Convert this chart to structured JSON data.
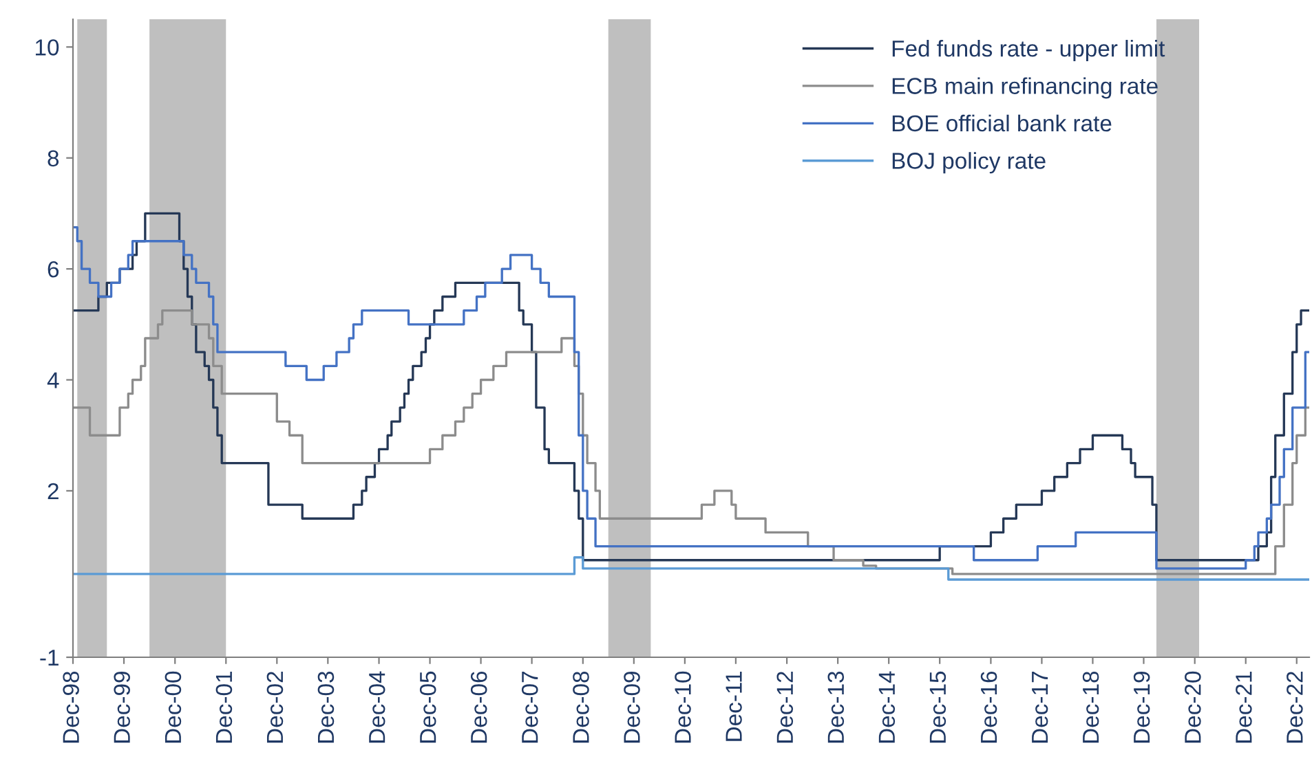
{
  "chart_data": {
    "type": "step",
    "legend": "top right",
    "grid": false,
    "xlim": [
      "1998-12",
      "2023-03"
    ],
    "ylim": [
      -1,
      10.5
    ],
    "yticks": [
      -1,
      2,
      4,
      6,
      8,
      10
    ],
    "xticks": [
      {
        "value": "1998-12",
        "label": "Dec-98"
      },
      {
        "value": "1999-12",
        "label": "Dec-99"
      },
      {
        "value": "2000-12",
        "label": "Dec-00"
      },
      {
        "value": "2001-12",
        "label": "Dec-01"
      },
      {
        "value": "2002-12",
        "label": "Dec-02"
      },
      {
        "value": "2003-12",
        "label": "Dec-03"
      },
      {
        "value": "2004-12",
        "label": "Dec-04"
      },
      {
        "value": "2005-12",
        "label": "Dec-05"
      },
      {
        "value": "2006-12",
        "label": "Dec-06"
      },
      {
        "value": "2007-12",
        "label": "Dec-07"
      },
      {
        "value": "2008-12",
        "label": "Dec-08"
      },
      {
        "value": "2009-12",
        "label": "Dec-09"
      },
      {
        "value": "2010-12",
        "label": "Dec-10"
      },
      {
        "value": "2011-12",
        "label": "Dec-11"
      },
      {
        "value": "2012-12",
        "label": "Dec-12"
      },
      {
        "value": "2013-12",
        "label": "Dec-13"
      },
      {
        "value": "2014-12",
        "label": "Dec-14"
      },
      {
        "value": "2015-12",
        "label": "Dec-15"
      },
      {
        "value": "2016-12",
        "label": "Dec-16"
      },
      {
        "value": "2017-12",
        "label": "Dec-17"
      },
      {
        "value": "2018-12",
        "label": "Dec-18"
      },
      {
        "value": "2019-12",
        "label": "Dec-19"
      },
      {
        "value": "2020-12",
        "label": "Dec-20"
      },
      {
        "value": "2021-12",
        "label": "Dec-21"
      },
      {
        "value": "2022-12",
        "label": "Dec-22"
      }
    ],
    "bands": [
      {
        "axis": "x",
        "from": "1999-01",
        "to": "1999-08",
        "color": "#bfbfbf"
      },
      {
        "axis": "x",
        "from": "2000-06",
        "to": "2001-12",
        "color": "#bfbfbf"
      },
      {
        "axis": "x",
        "from": "2009-06",
        "to": "2010-04",
        "color": "#bfbfbf"
      },
      {
        "axis": "x",
        "from": "2020-03",
        "to": "2021-01",
        "color": "#bfbfbf"
      }
    ],
    "series": [
      {
        "name": "Fed funds rate - upper limit",
        "color": "#253856",
        "x": [
          "1998-12",
          "1999-06",
          "1999-08",
          "1999-11",
          "2000-02",
          "2000-03",
          "2000-05",
          "2001-01",
          "2001-02",
          "2001-03",
          "2001-04",
          "2001-05",
          "2001-07",
          "2001-08",
          "2001-09",
          "2001-10",
          "2001-11",
          "2002-10",
          "2003-06",
          "2004-06",
          "2004-08",
          "2004-09",
          "2004-11",
          "2004-12",
          "2005-02",
          "2005-03",
          "2005-05",
          "2005-06",
          "2005-07",
          "2005-08",
          "2005-10",
          "2005-11",
          "2005-12",
          "2006-01",
          "2006-03",
          "2006-06",
          "2007-09",
          "2007-10",
          "2007-12",
          "2008-01",
          "2008-03",
          "2008-04",
          "2008-10",
          "2008-11",
          "2008-12",
          "2015-12",
          "2016-12",
          "2017-03",
          "2017-06",
          "2017-12",
          "2018-03",
          "2018-06",
          "2018-09",
          "2018-12",
          "2019-07",
          "2019-09",
          "2019-10",
          "2020-02",
          "2020-03",
          "2022-03",
          "2022-05",
          "2022-06",
          "2022-07",
          "2022-09",
          "2022-11",
          "2022-12",
          "2023-01",
          "2023-03"
        ],
        "values": [
          5.25,
          5.5,
          5.75,
          6.0,
          6.25,
          6.5,
          7.0,
          6.5,
          6.0,
          5.5,
          5.0,
          4.5,
          4.25,
          4.0,
          3.5,
          3.0,
          2.5,
          1.75,
          1.5,
          1.75,
          2.0,
          2.25,
          2.5,
          2.75,
          3.0,
          3.25,
          3.5,
          3.75,
          4.0,
          4.25,
          4.5,
          4.75,
          5.0,
          5.25,
          5.5,
          5.75,
          5.25,
          5.0,
          4.5,
          3.5,
          2.75,
          2.5,
          2.0,
          1.5,
          0.75,
          1.0,
          1.25,
          1.5,
          1.75,
          2.0,
          2.25,
          2.5,
          2.75,
          3.0,
          2.75,
          2.5,
          2.25,
          1.75,
          0.75,
          1.0,
          1.25,
          2.25,
          3.0,
          3.75,
          4.5,
          5.0,
          5.25,
          5.25
        ]
      },
      {
        "name": "ECB main refinancing rate",
        "color": "#8c8c8c",
        "x": [
          "1998-12",
          "1999-04",
          "1999-11",
          "2000-01",
          "2000-02",
          "2000-04",
          "2000-05",
          "2000-08",
          "2000-09",
          "2001-04",
          "2001-08",
          "2001-09",
          "2001-11",
          "2002-12",
          "2003-03",
          "2003-06",
          "2005-12",
          "2006-03",
          "2006-06",
          "2006-08",
          "2006-10",
          "2006-12",
          "2007-03",
          "2007-06",
          "2008-07",
          "2008-10",
          "2008-11",
          "2008-12",
          "2009-01",
          "2009-03",
          "2009-04",
          "2011-04",
          "2011-07",
          "2011-11",
          "2011-12",
          "2012-07",
          "2013-05",
          "2013-11",
          "2014-06",
          "2014-09",
          "2016-03",
          "2022-07",
          "2022-09",
          "2022-11",
          "2022-12",
          "2023-02",
          "2023-03"
        ],
        "values": [
          3.5,
          3.0,
          3.5,
          3.75,
          4.0,
          4.25,
          4.75,
          5.0,
          5.25,
          5.0,
          4.75,
          4.25,
          3.75,
          3.25,
          3.0,
          2.5,
          2.75,
          3.0,
          3.25,
          3.5,
          3.75,
          4.0,
          4.25,
          4.5,
          4.75,
          4.25,
          3.75,
          3.0,
          2.5,
          2.0,
          1.5,
          1.75,
          2.0,
          1.75,
          1.5,
          1.25,
          1.0,
          0.75,
          0.65,
          0.6,
          0.5,
          1.0,
          1.75,
          2.5,
          3.0,
          3.5,
          3.5
        ]
      },
      {
        "name": "BOE official bank rate",
        "color": "#4472c4",
        "x": [
          "1998-12",
          "1999-01",
          "1999-02",
          "1999-04",
          "1999-06",
          "1999-09",
          "1999-11",
          "2000-01",
          "2000-02",
          "2001-02",
          "2001-04",
          "2001-05",
          "2001-08",
          "2001-09",
          "2001-10",
          "2003-02",
          "2003-07",
          "2003-11",
          "2004-02",
          "2004-05",
          "2004-06",
          "2004-08",
          "2005-07",
          "2006-08",
          "2006-11",
          "2007-01",
          "2007-05",
          "2007-07",
          "2007-12",
          "2008-02",
          "2008-04",
          "2008-10",
          "2008-11",
          "2008-12",
          "2009-01",
          "2009-03",
          "2016-08",
          "2017-11",
          "2018-08",
          "2020-03",
          "2021-12",
          "2022-02",
          "2022-03",
          "2022-05",
          "2022-06",
          "2022-08",
          "2022-09",
          "2022-11",
          "2023-02",
          "2023-03"
        ],
        "values": [
          6.75,
          6.5,
          6.0,
          5.75,
          5.5,
          5.75,
          6.0,
          6.25,
          6.5,
          6.25,
          6.0,
          5.75,
          5.5,
          5.0,
          4.5,
          4.25,
          4.0,
          4.25,
          4.5,
          4.75,
          5.0,
          5.25,
          5.0,
          5.25,
          5.5,
          5.75,
          6.0,
          6.25,
          6.0,
          5.75,
          5.5,
          4.5,
          3.0,
          2.0,
          1.5,
          1.0,
          0.75,
          1.0,
          1.25,
          0.6,
          0.75,
          1.0,
          1.25,
          1.5,
          1.75,
          2.25,
          2.75,
          3.5,
          4.5,
          4.5
        ]
      },
      {
        "name": "BOJ policy rate",
        "color": "#5b9bd5",
        "x": [
          "1998-12",
          "2008-10",
          "2008-12",
          "2016-02",
          "2023-03"
        ],
        "values": [
          0.5,
          0.8,
          0.6,
          0.4,
          0.4
        ]
      }
    ]
  }
}
